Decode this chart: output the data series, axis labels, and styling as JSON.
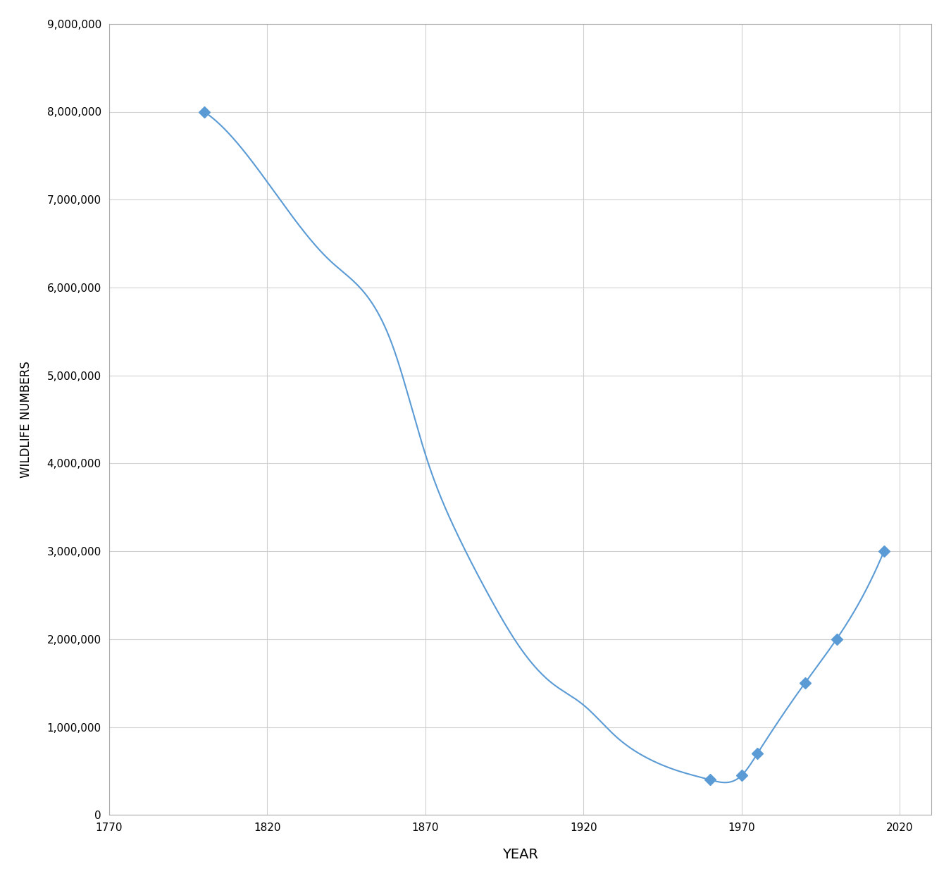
{
  "x_data_markers": [
    1800,
    1960,
    1970,
    1975,
    1990,
    2000,
    2015
  ],
  "y_data_markers": [
    8000000,
    400000,
    450000,
    700000,
    1500000,
    2000000,
    3000000
  ],
  "x_data_curve": [
    1800,
    1820,
    1840,
    1860,
    1870,
    1880,
    1890,
    1900,
    1910,
    1920,
    1930,
    1940,
    1950,
    1960,
    1970,
    1975,
    1990,
    2000,
    2015
  ],
  "y_data_curve": [
    8000000,
    7200000,
    6300000,
    5300000,
    4100000,
    3200000,
    2500000,
    1900000,
    1500000,
    1250000,
    900000,
    650000,
    500000,
    400000,
    450000,
    700000,
    1500000,
    2000000,
    3000000
  ],
  "line_color": "#5b9bd5",
  "marker_color": "#5b9bd5",
  "xlabel": "YEAR",
  "ylabel": "WILDLIFE NUMBERS",
  "xlim": [
    1770,
    2030
  ],
  "ylim": [
    0,
    9000000
  ],
  "xticks": [
    1770,
    1820,
    1870,
    1920,
    1970,
    2020
  ],
  "yticks": [
    0,
    1000000,
    2000000,
    3000000,
    4000000,
    5000000,
    6000000,
    7000000,
    8000000,
    9000000
  ],
  "ytick_labels": [
    "0",
    "1,000,000",
    "2,000,000",
    "3,000,000",
    "4,000,000",
    "5,000,000",
    "6,000,000",
    "7,000,000",
    "8,000,000",
    "9,000,000"
  ],
  "xtick_labels": [
    "1770",
    "1820",
    "1870",
    "1920",
    "1970",
    "2020"
  ],
  "background_color": "#ffffff",
  "grid_color": "#d0d0d0",
  "xlabel_fontsize": 14,
  "ylabel_fontsize": 12,
  "tick_fontsize": 11,
  "line_width": 1.5,
  "marker_size": 8
}
